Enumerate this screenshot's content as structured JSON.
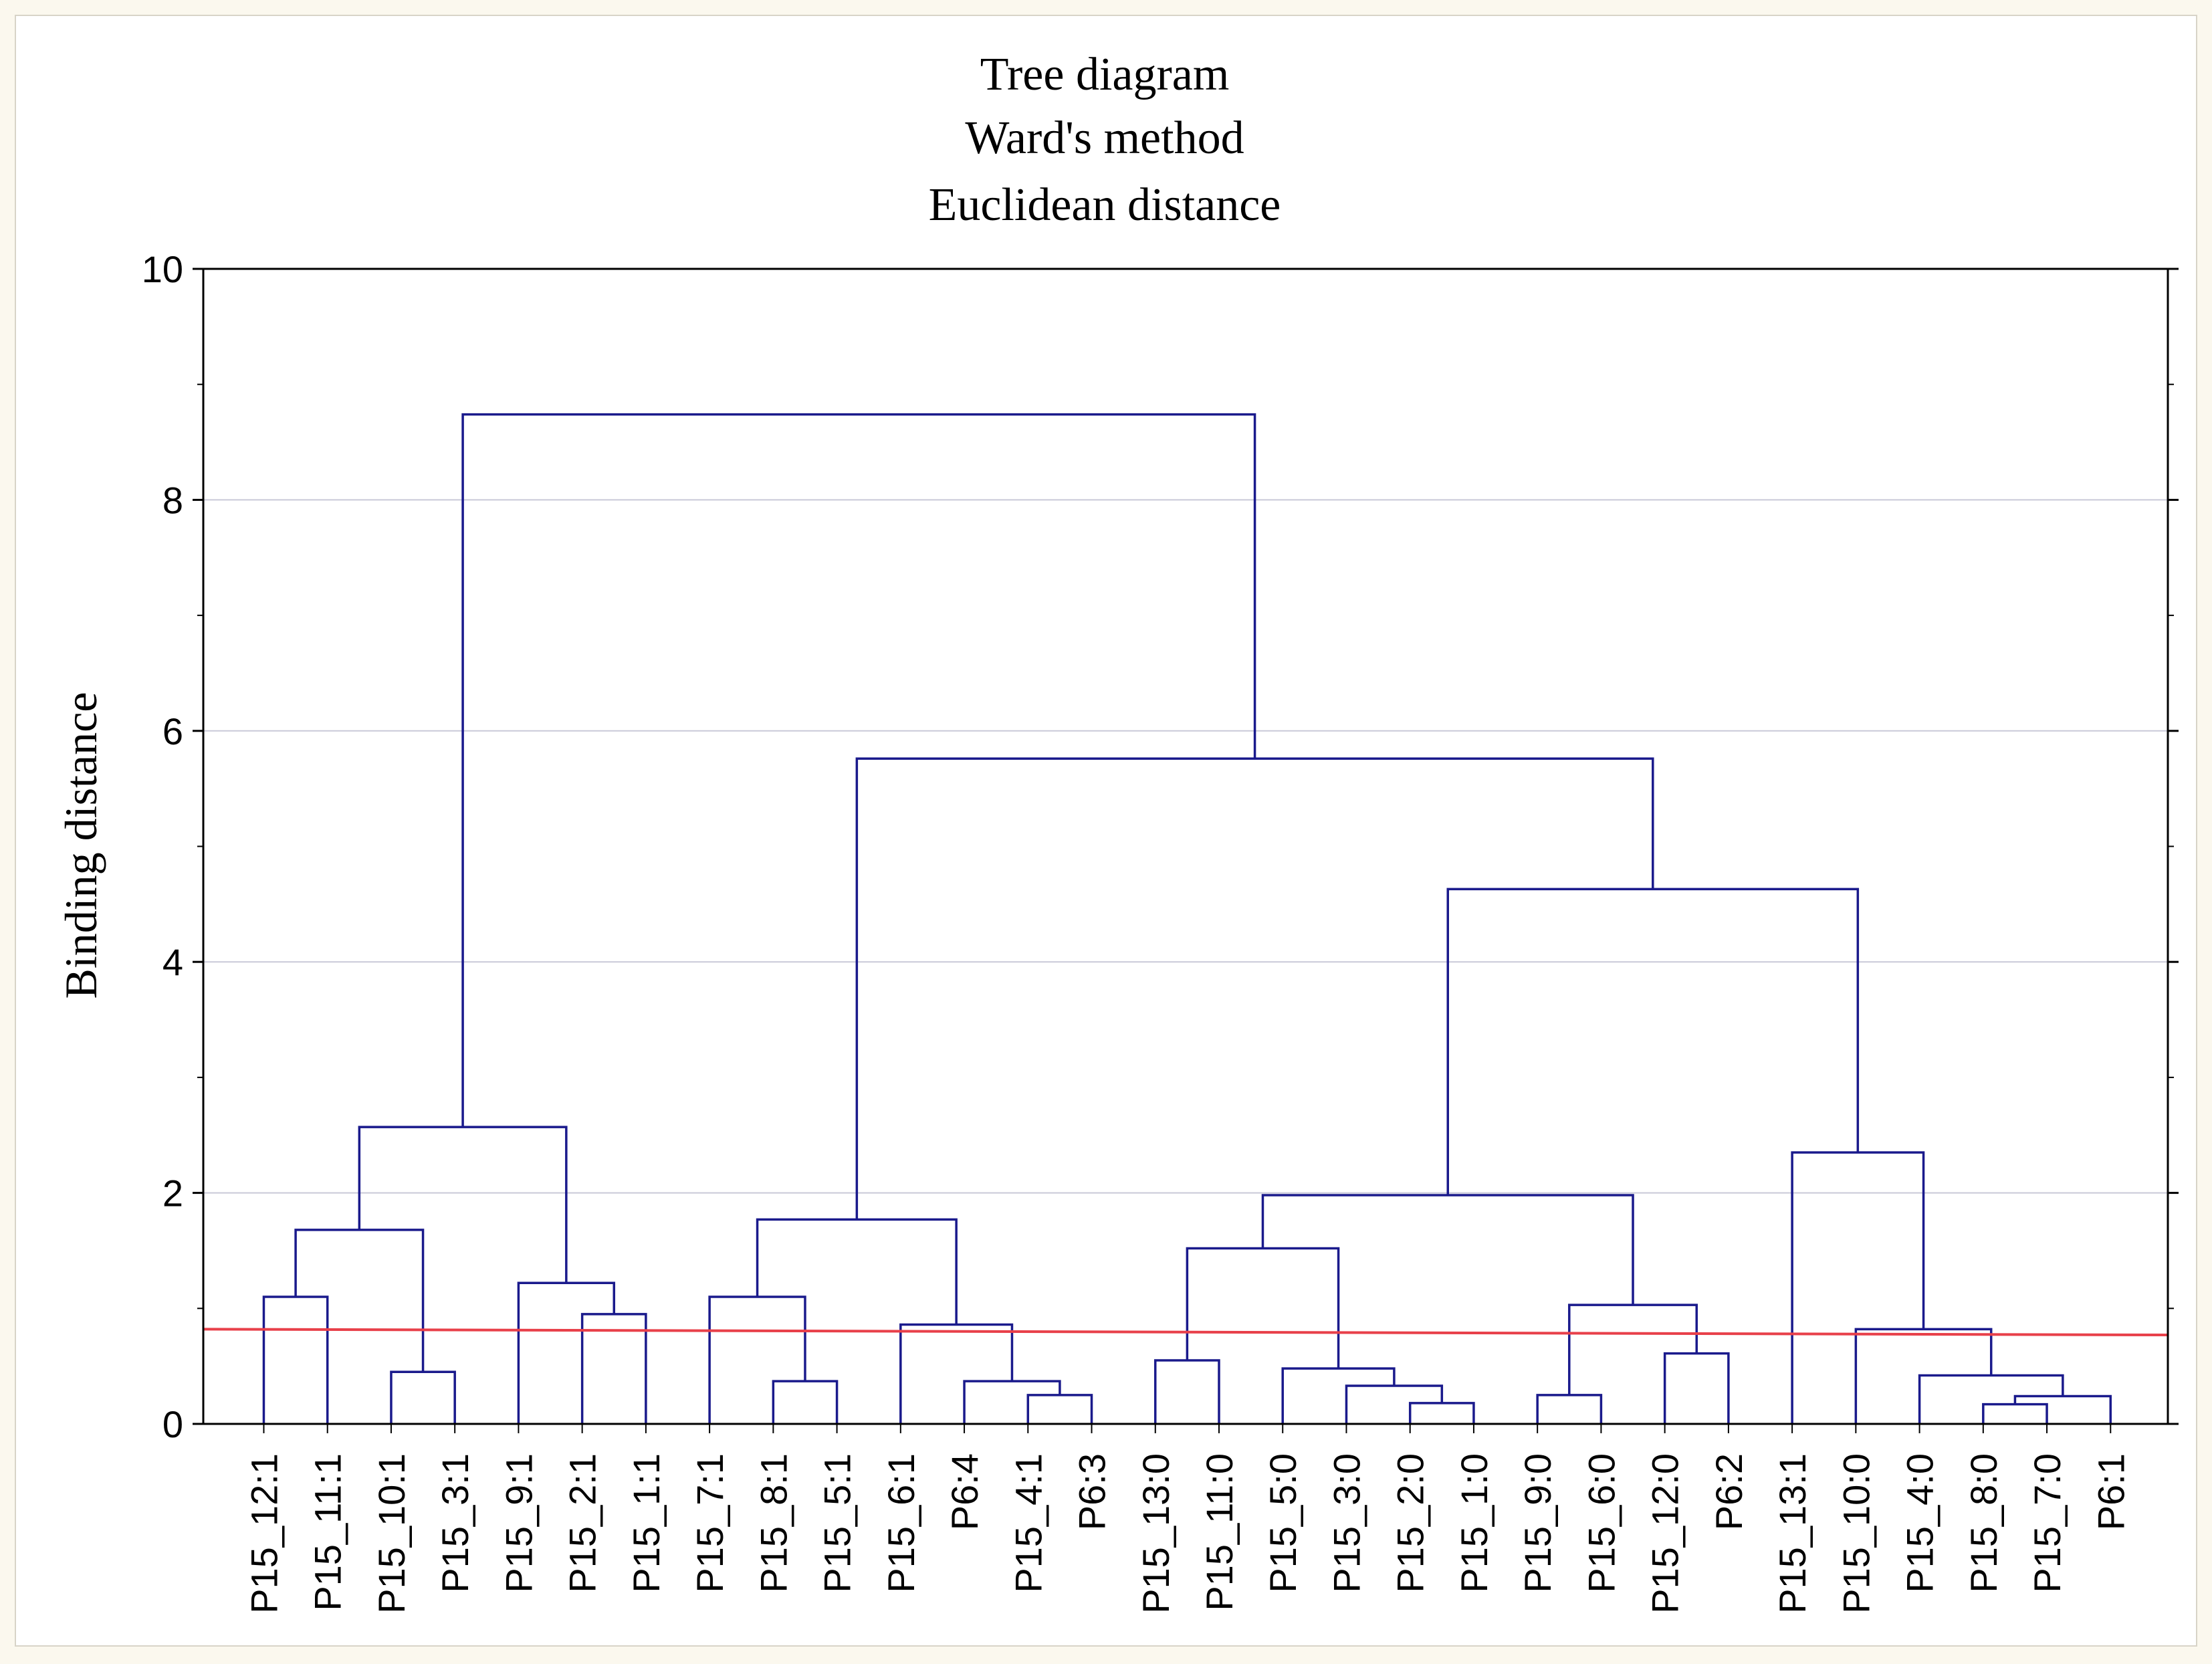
{
  "chart_data": {
    "type": "dendrogram",
    "title": [
      "Tree diagram",
      "Ward's method",
      "Euclidean distance"
    ],
    "ylabel": "Binding distance",
    "xlabel": "",
    "ylim": [
      0,
      10
    ],
    "yticks": [
      0,
      2,
      4,
      6,
      8,
      10
    ],
    "grid": true,
    "leaves": [
      "P15_12:1",
      "P15_11:1",
      "P15_10:1",
      "P15_3:1",
      "P15_9:1",
      "P15_2:1",
      "P15_1:1",
      "P15_7:1",
      "P15_8:1",
      "P15_5:1",
      "P15_6:1",
      "P6:4",
      "P15_4:1",
      "P6:3",
      "P15_13:0",
      "P15_11:0",
      "P15_5:0",
      "P15_3:0",
      "P15_2:0",
      "P15_1:0",
      "P15_9:0",
      "P15_6:0",
      "P15_12:0",
      "P6:2",
      "P15_13:1",
      "P15_10:0",
      "P15_4:0",
      "P15_8:0",
      "P15_7:0",
      "P6:1"
    ],
    "merges": [
      {
        "left": "L0",
        "right": "L1",
        "height": 1.1
      },
      {
        "left": "L2",
        "right": "L3",
        "height": 0.45
      },
      {
        "left": "M0",
        "right": "M1",
        "height": 1.68
      },
      {
        "left": "L5",
        "right": "L6",
        "height": 0.95
      },
      {
        "left": "L4",
        "right": "M3",
        "height": 1.22
      },
      {
        "left": "M2",
        "right": "M4",
        "height": 2.57
      },
      {
        "left": "L8",
        "right": "L9",
        "height": 0.37
      },
      {
        "left": "L7",
        "right": "M6",
        "height": 1.1
      },
      {
        "left": "L13",
        "right": "L12",
        "height": 0.25
      },
      {
        "left": "M8",
        "right": "L11",
        "height": 0.37
      },
      {
        "left": "L10",
        "right": "M9",
        "height": 0.86
      },
      {
        "left": "M7",
        "right": "M10",
        "height": 1.77
      },
      {
        "left": "L14",
        "right": "L15",
        "height": 0.55
      },
      {
        "left": "L18",
        "right": "L19",
        "height": 0.18
      },
      {
        "left": "L17",
        "right": "M13",
        "height": 0.33
      },
      {
        "left": "L16",
        "right": "M14",
        "height": 0.48
      },
      {
        "left": "M12",
        "right": "M15",
        "height": 1.52
      },
      {
        "left": "L20",
        "right": "L21",
        "height": 0.25
      },
      {
        "left": "L22",
        "right": "L23",
        "height": 0.61
      },
      {
        "left": "M17",
        "right": "M18",
        "height": 1.03
      },
      {
        "left": "M16",
        "right": "M19",
        "height": 1.98
      },
      {
        "left": "L27",
        "right": "L28",
        "height": 0.17
      },
      {
        "left": "M21",
        "right": "L29",
        "height": 0.24
      },
      {
        "left": "L26",
        "right": "M22",
        "height": 0.42
      },
      {
        "left": "L25",
        "right": "M23",
        "height": 0.82
      },
      {
        "left": "L24",
        "right": "M24",
        "height": 2.35
      },
      {
        "left": "M20",
        "right": "M25",
        "height": 4.63
      },
      {
        "left": "M11",
        "right": "M26",
        "height": 5.76
      },
      {
        "left": "M5",
        "right": "M27",
        "height": 8.74
      }
    ],
    "cut_line": {
      "y_start": 0.82,
      "y_end": 0.77,
      "color": "#e8404a"
    },
    "line_color": "#1a1a8c",
    "grid_color": "#c9c9d8"
  }
}
